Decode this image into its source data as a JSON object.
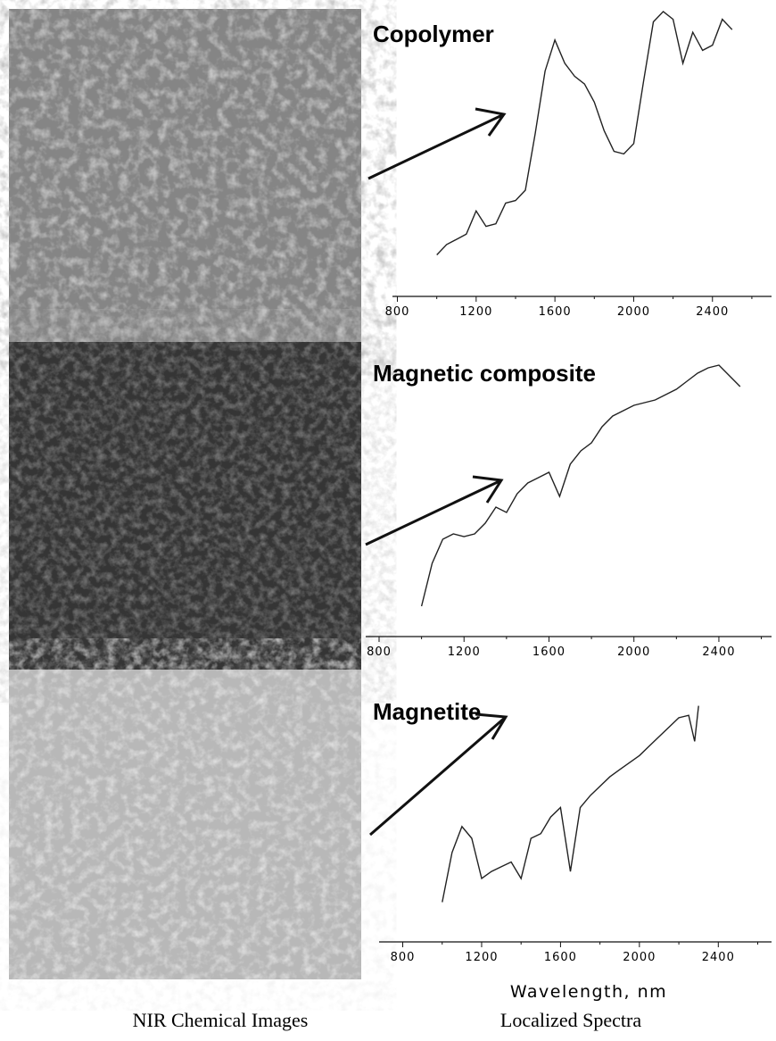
{
  "chart_data": [
    {
      "type": "line",
      "title": "Copolymer",
      "xlim": [
        775,
        2700
      ],
      "ylim": [
        0,
        100
      ],
      "xticks": [
        800,
        1200,
        1600,
        2000,
        2400
      ],
      "color": "#222222",
      "x": [
        1000,
        1050,
        1100,
        1150,
        1200,
        1250,
        1300,
        1350,
        1400,
        1450,
        1500,
        1550,
        1600,
        1650,
        1700,
        1750,
        1800,
        1850,
        1900,
        1950,
        2000,
        2050,
        2100,
        2150,
        2200,
        2250,
        2300,
        2350,
        2400,
        2450,
        2500
      ],
      "values": [
        5,
        9,
        11,
        13,
        22,
        16,
        17,
        25,
        26,
        30,
        52,
        76,
        88,
        79,
        74,
        71,
        64,
        53,
        45,
        44,
        48,
        72,
        95,
        99,
        96,
        79,
        91,
        84,
        86,
        96,
        92
      ]
    },
    {
      "type": "line",
      "title": "Magnetic composite",
      "xlim": [
        737,
        2648
      ],
      "ylim": [
        0,
        100
      ],
      "xticks": [
        800,
        1200,
        1600,
        2000,
        2400
      ],
      "color": "#222222",
      "x": [
        1000,
        1050,
        1100,
        1150,
        1200,
        1250,
        1300,
        1350,
        1400,
        1450,
        1500,
        1550,
        1600,
        1650,
        1700,
        1750,
        1800,
        1850,
        1900,
        1950,
        2000,
        2050,
        2100,
        2150,
        2200,
        2250,
        2300,
        2350,
        2400,
        2450,
        2500
      ],
      "values": [
        7,
        23,
        32,
        34,
        33,
        34,
        38,
        44,
        42,
        49,
        53,
        55,
        57,
        48,
        60,
        65,
        68,
        74,
        78,
        80,
        82,
        83,
        84,
        86,
        88,
        91,
        94,
        96,
        97,
        93,
        89
      ]
    },
    {
      "type": "line",
      "title": "Magnetite",
      "xlim": [
        680,
        2670
      ],
      "ylim": [
        0,
        100
      ],
      "xticks": [
        800,
        1200,
        1600,
        2000,
        2400
      ],
      "color": "#222222",
      "xlabel": "Wavelength, nm",
      "x": [
        1000,
        1050,
        1100,
        1150,
        1200,
        1250,
        1300,
        1350,
        1400,
        1450,
        1500,
        1550,
        1600,
        1650,
        1700,
        1750,
        1800,
        1850,
        1900,
        1950,
        2000,
        2050,
        2100,
        2150,
        2200,
        2250,
        2280,
        2300
      ],
      "values": [
        13,
        34,
        45,
        40,
        23,
        26,
        28,
        30,
        23,
        40,
        42,
        49,
        53,
        26,
        53,
        58,
        62,
        66,
        69,
        72,
        75,
        79,
        83,
        87,
        91,
        92,
        81,
        96
      ]
    }
  ],
  "captions": [
    "NIR Chemical Images",
    "Localized Spectra"
  ]
}
